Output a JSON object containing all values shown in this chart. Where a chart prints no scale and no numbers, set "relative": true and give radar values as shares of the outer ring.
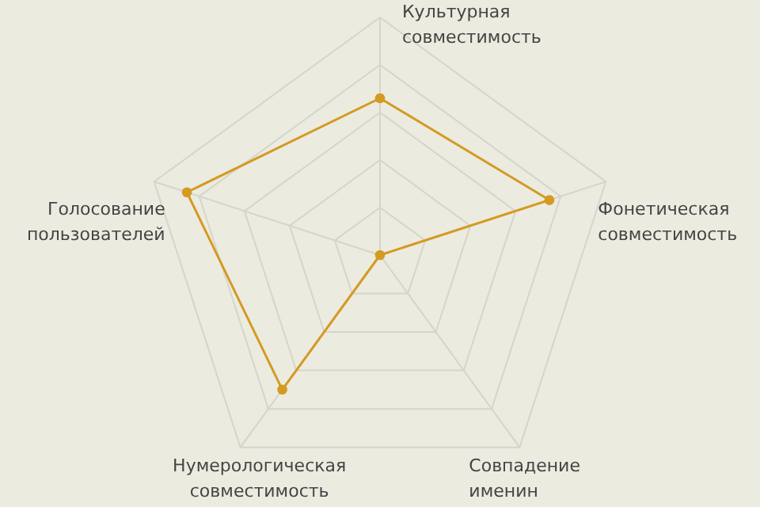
{
  "chart_data": {
    "type": "radar",
    "relative": true,
    "marker": "circle",
    "grid": true,
    "categories": [
      "Культурная совместимость",
      "Фонетическая совместимость",
      "Совпадение именин",
      "Нумерологическая совместимость",
      "Голосование пользователей"
    ],
    "series": [
      {
        "color": "#d49a22",
        "values": [
          0.66,
          0.75,
          0.0,
          0.7,
          0.855
        ]
      }
    ]
  }
}
